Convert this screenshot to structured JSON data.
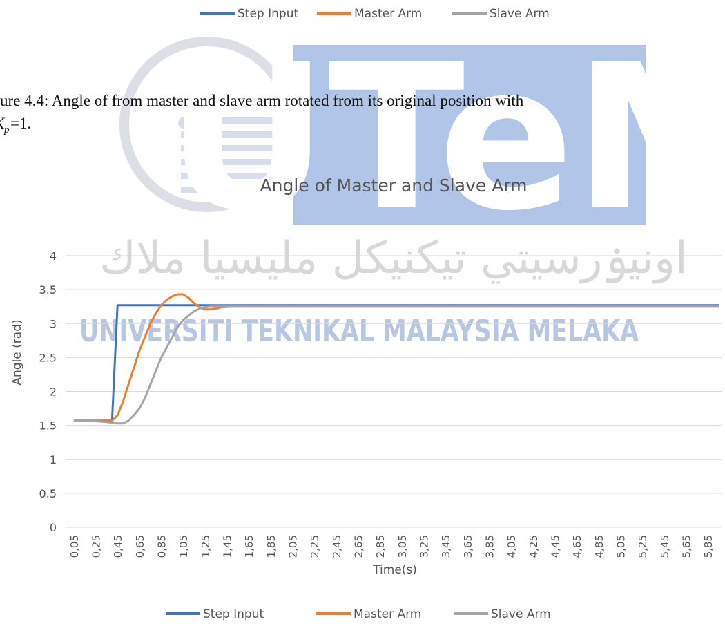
{
  "document": {
    "caption_line1": "ure 4.4: Angle of from master and slave arm rotated from its original position with",
    "caption_symbol": "K",
    "caption_subscript": "p",
    "caption_rest": "=1."
  },
  "watermark": {
    "logo": "UTeM",
    "arabic": "اونيۏرسيتي تيكنيكل مليسيا ملاك",
    "university": "UNIVERSITI TEKNIKAL MALAYSIA MELAKA"
  },
  "chart_data": {
    "type": "line",
    "title": "Angle of Master and Slave Arm",
    "x_label": "Time(s)",
    "y_label": "Angle (rad)",
    "x": [
      0.05,
      0.2,
      0.35,
      0.4,
      0.45,
      0.5,
      0.55,
      0.6,
      0.65,
      0.7,
      0.75,
      0.8,
      0.85,
      0.9,
      0.95,
      1.0,
      1.05,
      1.1,
      1.15,
      1.2,
      1.25,
      1.3,
      1.35,
      1.4,
      1.5,
      2.0,
      3.0,
      4.0,
      5.0,
      5.95
    ],
    "series": [
      {
        "name": "Step Input",
        "color": "#4472c4",
        "values": [
          1.57,
          1.57,
          1.57,
          1.57,
          3.27,
          3.27,
          3.27,
          3.27,
          3.27,
          3.27,
          3.27,
          3.27,
          3.27,
          3.27,
          3.27,
          3.27,
          3.27,
          3.27,
          3.27,
          3.27,
          3.27,
          3.27,
          3.27,
          3.27,
          3.27,
          3.27,
          3.27,
          3.27,
          3.27,
          3.27
        ]
      },
      {
        "name": "Master Arm",
        "color": "#ed7d31",
        "values": [
          1.57,
          1.57,
          1.57,
          1.57,
          1.65,
          1.85,
          2.1,
          2.35,
          2.6,
          2.8,
          3.0,
          3.15,
          3.27,
          3.35,
          3.4,
          3.43,
          3.43,
          3.38,
          3.3,
          3.24,
          3.21,
          3.21,
          3.22,
          3.24,
          3.25,
          3.25,
          3.25,
          3.25,
          3.25,
          3.25
        ]
      },
      {
        "name": "Slave Arm",
        "color": "#a5a5a5",
        "values": [
          1.57,
          1.57,
          1.55,
          1.54,
          1.53,
          1.53,
          1.57,
          1.65,
          1.75,
          1.9,
          2.1,
          2.3,
          2.5,
          2.65,
          2.8,
          2.95,
          3.05,
          3.12,
          3.18,
          3.22,
          3.24,
          3.25,
          3.25,
          3.25,
          3.25,
          3.25,
          3.25,
          3.25,
          3.25,
          3.25
        ]
      }
    ],
    "xlim": [
      -0.025,
      5.975
    ],
    "ylim": [
      0,
      4
    ],
    "yticks": [
      0,
      0.5,
      1,
      1.5,
      2,
      2.5,
      3,
      3.5,
      4
    ],
    "xticks": [
      {
        "value": 0.05,
        "label": "0,05"
      },
      {
        "value": 0.25,
        "label": "0,25"
      },
      {
        "value": 0.45,
        "label": "0,45"
      },
      {
        "value": 0.65,
        "label": "0,65"
      },
      {
        "value": 0.85,
        "label": "0,85"
      },
      {
        "value": 1.05,
        "label": "1,05"
      },
      {
        "value": 1.25,
        "label": "1,25"
      },
      {
        "value": 1.45,
        "label": "1,45"
      },
      {
        "value": 1.65,
        "label": "1,65"
      },
      {
        "value": 1.85,
        "label": "1,85"
      },
      {
        "value": 2.05,
        "label": "2,05"
      },
      {
        "value": 2.25,
        "label": "2,25"
      },
      {
        "value": 2.45,
        "label": "2,45"
      },
      {
        "value": 2.65,
        "label": "2,65"
      },
      {
        "value": 2.85,
        "label": "2,85"
      },
      {
        "value": 3.05,
        "label": "3,05"
      },
      {
        "value": 3.25,
        "label": "3,25"
      },
      {
        "value": 3.45,
        "label": "3,45"
      },
      {
        "value": 3.65,
        "label": "3,65"
      },
      {
        "value": 3.85,
        "label": "3,85"
      },
      {
        "value": 4.05,
        "label": "4,05"
      },
      {
        "value": 4.25,
        "label": "4,25"
      },
      {
        "value": 4.45,
        "label": "4,45"
      },
      {
        "value": 4.65,
        "label": "4,65"
      },
      {
        "value": 4.85,
        "label": "4,85"
      },
      {
        "value": 5.05,
        "label": "5,05"
      },
      {
        "value": 5.25,
        "label": "5,25"
      },
      {
        "value": 5.45,
        "label": "5,45"
      },
      {
        "value": 5.65,
        "label": "5,65"
      },
      {
        "value": 5.85,
        "label": "5,85"
      }
    ],
    "grid": true,
    "legend": "bottom"
  }
}
